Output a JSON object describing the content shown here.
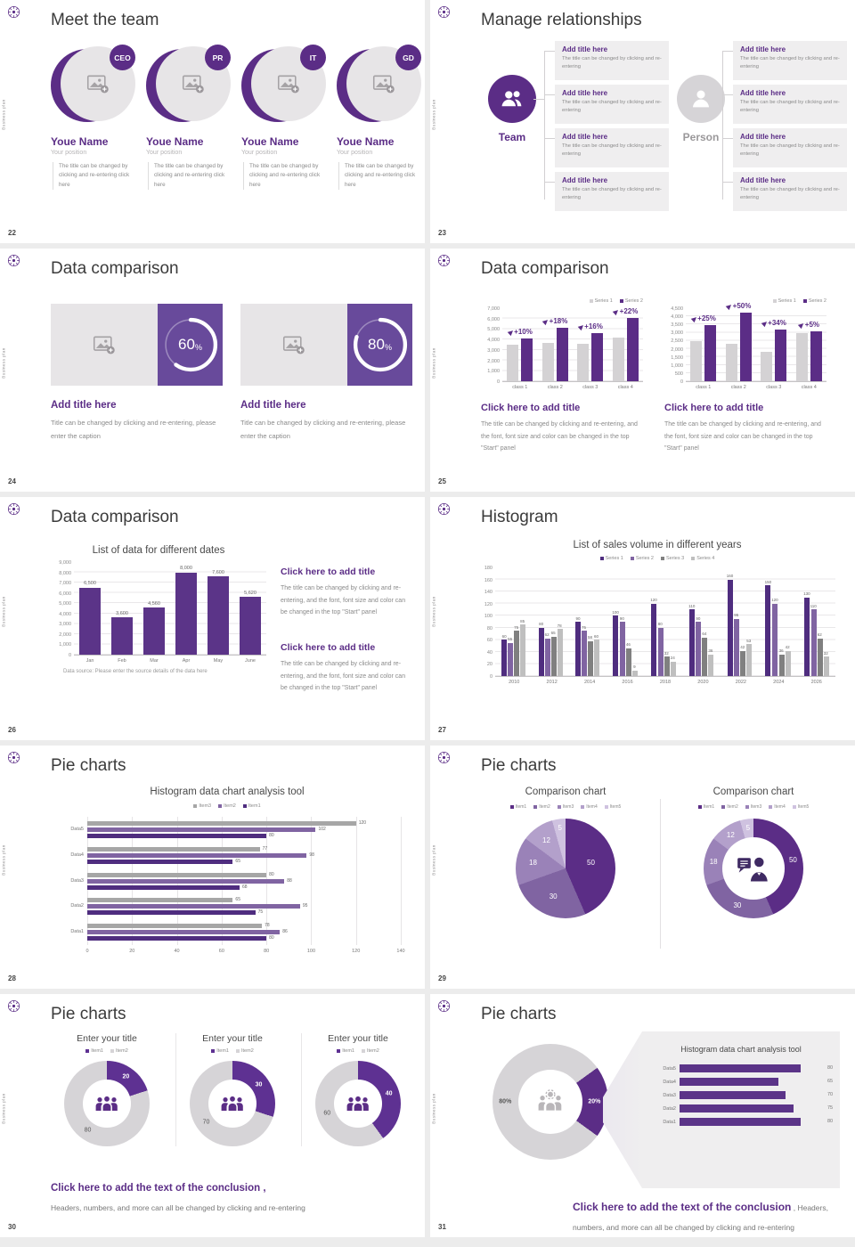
{
  "theme": {
    "accent": "#5b2d86",
    "accent_mid": "#8064a2",
    "accent_light": "#9a82b8",
    "accent_lighter": "#b3a0cb",
    "accent_lightest": "#cfc2e0",
    "panel_purple": "#684a9b",
    "bar_gray": "#d4d2d4",
    "series3_gray": "#808080",
    "series4_gray": "#bfbfbf",
    "item3_gray": "#a6a6a6",
    "donut_gray": "#d6d4d7"
  },
  "sidebar_text": "Business plan",
  "slides": {
    "s22": {
      "page": "22",
      "title": "Meet the team",
      "members": [
        {
          "badge": "CEO",
          "name": "Youe Name",
          "position": "Your position",
          "desc": "The title can be changed by clicking and re-entering click here"
        },
        {
          "badge": "PR",
          "name": "Youe Name",
          "position": "Your position",
          "desc": "The title can be changed by clicking and re-entering click here"
        },
        {
          "badge": "IT",
          "name": "Youe Name",
          "position": "Your position",
          "desc": "The title can be changed by clicking and re-entering click here"
        },
        {
          "badge": "GD",
          "name": "Youe Name",
          "position": "Your position",
          "desc": "The title can be changed by clicking and re-entering click here"
        }
      ]
    },
    "s23": {
      "page": "23",
      "title": "Manage relationships",
      "team_label": "Team",
      "person_label": "Person",
      "box_title": "Add title here",
      "box_desc": "The title can be changed by clicking and re-entering",
      "team_box_count": 4,
      "person_box_count": 4
    },
    "s24": {
      "page": "24",
      "title": "Data comparison",
      "cards": [
        {
          "percent": 60,
          "card_title": "Add title here",
          "caption": "Title can be changed by clicking and re-entering, please enter the caption"
        },
        {
          "percent": 80,
          "card_title": "Add title here",
          "caption": "Title can be changed by clicking and re-entering, please enter the caption"
        }
      ]
    },
    "s25": {
      "page": "25",
      "title": "Data comparison",
      "caption_title": "Click here to add title",
      "caption_body": "The title can be changed by clicking and re-entering, and the font, font size and color can be changed in the top \"Start\" panel"
    },
    "s26": {
      "page": "26",
      "title": "Data comparison",
      "footnote": "Data source: Please enter the source details of the data here",
      "blocks": [
        {
          "title": "Click here to add title",
          "body": "The title can be changed by clicking and re-entering, and the font, font size and color can be changed in the top \"Start\" panel"
        },
        {
          "title": "Click here to add title",
          "body": "The title can be changed by clicking and re-entering, and the font, font size and color can be changed in the top \"Start\" panel"
        }
      ]
    },
    "s27": {
      "page": "27",
      "title": "Histogram"
    },
    "s28": {
      "page": "28",
      "title": "Pie charts"
    },
    "s29": {
      "page": "29",
      "title": "Pie charts"
    },
    "s30": {
      "page": "30",
      "title": "Pie charts",
      "conclusion_title": "Click here to add the text of the conclusion ,",
      "conclusion_body": "Headers, numbers, and more can all be changed by clicking and re-entering"
    },
    "s31": {
      "page": "31",
      "title": "Pie charts",
      "donut_labels": [
        "20%",
        "80%"
      ],
      "conclusion_title": "Click here to add the text of the conclusion",
      "conclusion_inline": " ,  Headers,",
      "conclusion_body": "numbers, and more can all be changed by clicking and re-entering"
    }
  },
  "chart_data": [
    {
      "id": "bar-25-left",
      "type": "bar",
      "legend": [
        "Series 1",
        "Series 2"
      ],
      "categories": [
        "class 1",
        "class 2",
        "class 3",
        "class 4"
      ],
      "series": [
        {
          "name": "Series 1",
          "values": [
            3500,
            3700,
            3600,
            4200
          ]
        },
        {
          "name": "Series 2",
          "values": [
            4100,
            5100,
            4600,
            6100
          ]
        }
      ],
      "annotations": [
        "+10%",
        "+18%",
        "+16%",
        "+22%"
      ],
      "ylim": [
        0,
        7000
      ],
      "yticks": [
        "7,000",
        "6,000",
        "5,000",
        "4,000",
        "3,000",
        "2,000",
        "1,000",
        "0"
      ]
    },
    {
      "id": "bar-25-right",
      "type": "bar",
      "legend": [
        "Series 1",
        "Series 2"
      ],
      "categories": [
        "class 1",
        "class 2",
        "class 3",
        "class 4"
      ],
      "series": [
        {
          "name": "Series 1",
          "values": [
            2450,
            2300,
            1800,
            2950
          ]
        },
        {
          "name": "Series 2",
          "values": [
            3450,
            4200,
            3200,
            3100
          ]
        }
      ],
      "annotations": [
        "+25%",
        "+50%",
        "+34%",
        "+5%"
      ],
      "ylim": [
        0,
        4500
      ],
      "yticks": [
        "4,500",
        "4,000",
        "3,500",
        "3,000",
        "2,500",
        "2,000",
        "1,500",
        "1,000",
        "500",
        "0"
      ]
    },
    {
      "id": "bar-26",
      "type": "bar",
      "title": "List of data for different dates",
      "categories": [
        "Jan",
        "Feb",
        "Mar",
        "Apr",
        "May",
        "June"
      ],
      "values": [
        6500,
        3600,
        4560,
        8000,
        7600,
        5620
      ],
      "value_labels": [
        "6,500",
        "3,600",
        "4,560",
        "8,000",
        "7,600",
        "5,620"
      ],
      "ylim": [
        0,
        9000
      ],
      "yticks": [
        "9,000",
        "8,000",
        "7,000",
        "6,000",
        "5,000",
        "4,000",
        "3,000",
        "2,000",
        "1,000",
        "0"
      ]
    },
    {
      "id": "bar-27",
      "type": "bar",
      "title": "List of sales volume in different years",
      "legend": [
        "Series 1",
        "Series 2",
        "Series 3",
        "Series 4"
      ],
      "categories": [
        "2010",
        "2012",
        "2014",
        "2016",
        "2018",
        "2020",
        "2022",
        "2024",
        "2026"
      ],
      "series": [
        {
          "name": "Series 1",
          "values": [
            60,
            80,
            90,
            100,
            120,
            110,
            160,
            150,
            130
          ]
        },
        {
          "name": "Series 2",
          "values": [
            55,
            62,
            75,
            90,
            80,
            90,
            95,
            120,
            110
          ]
        },
        {
          "name": "Series 3",
          "values": [
            75,
            65,
            58,
            46,
            32,
            64,
            42,
            36,
            62
          ]
        },
        {
          "name": "Series 4",
          "values": [
            85,
            78,
            60,
            9,
            24,
            36,
            53,
            42,
            32
          ]
        }
      ],
      "ylim": [
        0,
        180
      ],
      "yticks": [
        "180",
        "160",
        "140",
        "120",
        "100",
        "80",
        "60",
        "40",
        "20",
        "0"
      ]
    },
    {
      "id": "hbar-28",
      "type": "bar",
      "orientation": "horizontal",
      "title": "Histogram data chart analysis tool",
      "legend": [
        "Item3",
        "Item2",
        "Item1"
      ],
      "categories": [
        "Data5",
        "Data4",
        "Data3",
        "Data2",
        "Data1"
      ],
      "series": [
        {
          "name": "Item3",
          "values": [
            120,
            77,
            80,
            65,
            78
          ]
        },
        {
          "name": "Item2",
          "values": [
            102,
            98,
            88,
            95,
            86
          ]
        },
        {
          "name": "Item1",
          "values": [
            80,
            65,
            68,
            75,
            80
          ]
        }
      ],
      "xlim": [
        0,
        140
      ],
      "xticks": [
        "0",
        "20",
        "40",
        "60",
        "80",
        "100",
        "120",
        "140"
      ]
    },
    {
      "id": "pie-29-left",
      "type": "pie",
      "title": "Comparison chart",
      "legend": [
        "Item1",
        "Item2",
        "Item3",
        "Item4",
        "Item5"
      ],
      "values": [
        50,
        30,
        18,
        12,
        5
      ]
    },
    {
      "id": "donut-29-right",
      "type": "pie",
      "subtype": "donut",
      "title": "Comparison chart",
      "legend": [
        "Item1",
        "Item2",
        "Item3",
        "Item4",
        "Item5"
      ],
      "values": [
        50,
        30,
        18,
        12,
        5
      ]
    },
    {
      "id": "donut-30-1",
      "type": "pie",
      "subtype": "donut",
      "title": "Enter your title",
      "legend": [
        "Item1",
        "Item2"
      ],
      "values": [
        20,
        80
      ]
    },
    {
      "id": "donut-30-2",
      "type": "pie",
      "subtype": "donut",
      "title": "Enter your title",
      "legend": [
        "Item1",
        "Item2"
      ],
      "values": [
        30,
        70
      ]
    },
    {
      "id": "donut-30-3",
      "type": "pie",
      "subtype": "donut",
      "title": "Enter your title",
      "legend": [
        "Item1",
        "Item2"
      ],
      "values": [
        40,
        60
      ]
    },
    {
      "id": "donut-31",
      "type": "pie",
      "subtype": "donut",
      "values": [
        20,
        80
      ],
      "labels": [
        "20%",
        "80%"
      ]
    },
    {
      "id": "hbar-31",
      "type": "bar",
      "orientation": "horizontal",
      "title": "Histogram data chart analysis tool",
      "categories": [
        "Data5",
        "Data4",
        "Data3",
        "Data2",
        "Data1"
      ],
      "values": [
        80,
        65,
        70,
        75,
        80
      ],
      "xlim": [
        0,
        95
      ]
    }
  ]
}
